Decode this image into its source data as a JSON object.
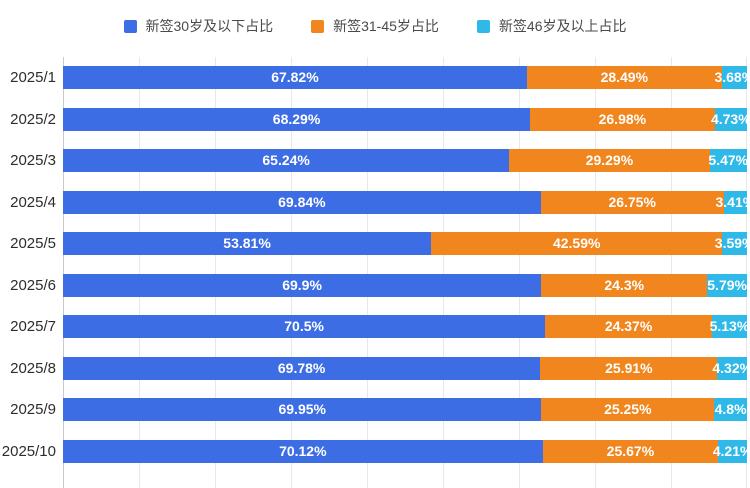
{
  "legend": [
    {
      "label": "新签30岁及以下占比",
      "color": "#3d6de4",
      "marker": "square-icon"
    },
    {
      "label": "新签31-45岁占比",
      "color": "#f0861d",
      "marker": "square-icon"
    },
    {
      "label": "新签46岁及以上占比",
      "color": "#2fb9e8",
      "marker": "square-icon"
    }
  ],
  "chart_data": {
    "type": "bar",
    "orientation": "horizontal-stacked-100",
    "title": "",
    "xlabel": "",
    "ylabel": "",
    "xlim": [
      0,
      100
    ],
    "grid": true,
    "grid_divisions": 9,
    "legend_position": "top",
    "categories": [
      "2025/1",
      "2025/2",
      "2025/3",
      "2025/4",
      "2025/5",
      "2025/6",
      "2025/7",
      "2025/8",
      "2025/9",
      "2025/10"
    ],
    "series": [
      {
        "name": "新签30岁及以下占比",
        "color": "#3d6de4",
        "values": [
          67.82,
          68.29,
          65.24,
          69.84,
          53.81,
          69.9,
          70.5,
          69.78,
          69.95,
          70.12
        ],
        "labels": [
          "67.82%",
          "68.29%",
          "65.24%",
          "69.84%",
          "53.81%",
          "69.9%",
          "70.5%",
          "69.78%",
          "69.95%",
          "70.12%"
        ]
      },
      {
        "name": "新签31-45岁占比",
        "color": "#f0861d",
        "values": [
          28.49,
          26.98,
          29.29,
          26.75,
          42.59,
          24.3,
          24.37,
          25.91,
          25.25,
          25.67
        ],
        "labels": [
          "28.49%",
          "26.98%",
          "29.29%",
          "26.75%",
          "42.59%",
          "24.3%",
          "24.37%",
          "25.91%",
          "25.25%",
          "25.67%"
        ]
      },
      {
        "name": "新签46岁及以上占比",
        "color": "#2fb9e8",
        "values": [
          3.68,
          4.73,
          5.47,
          3.41,
          3.59,
          5.79,
          5.13,
          4.32,
          4.8,
          4.21
        ],
        "labels": [
          "3.68%",
          "4.73%",
          "5.47%",
          "3.41%",
          "3.59%",
          "5.79%",
          "5.13%",
          "4.32%",
          "4.8%",
          "4.21%"
        ]
      }
    ]
  },
  "colors": {
    "background": "#ffffff",
    "grid_line": "#e8e8e8",
    "axis_line": "#c9c9c9",
    "category_text": "#2d2d2d",
    "legend_text": "#4a4a4a",
    "value_text": "#ffffff"
  }
}
